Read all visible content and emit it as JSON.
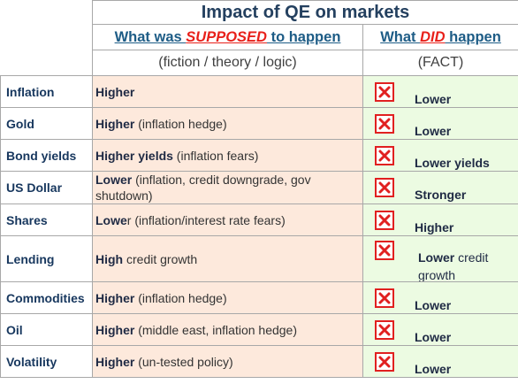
{
  "title": "Impact of QE on markets",
  "header": {
    "supposed": {
      "pre": "What was ",
      "em": "SUPPOSED",
      "post": " to happen"
    },
    "did": {
      "pre": "What ",
      "em": "DID",
      "post": " happen"
    },
    "supposed_sub": "(fiction / theory / logic)",
    "did_sub": "(FACT)"
  },
  "rows": [
    {
      "label": "Inflation",
      "supposed_bold": "Higher",
      "supposed_rest": "",
      "fact_bold": "Lower",
      "fact_rest": "",
      "fact_icon": "red-x-icon"
    },
    {
      "label": "Gold",
      "supposed_bold": "Higher",
      "supposed_rest": " (inflation hedge)",
      "fact_bold": "Lower",
      "fact_rest": "",
      "fact_icon": "red-x-icon"
    },
    {
      "label": "Bond yields",
      "supposed_bold": "Higher yields",
      "supposed_rest": " (inflation fears)",
      "fact_bold": "Lower yields",
      "fact_rest": "",
      "fact_icon": "red-x-icon"
    },
    {
      "label": "US Dollar",
      "supposed_bold": "Lower",
      "supposed_rest": " (inflation, credit downgrade, gov shutdown)",
      "fact_bold": "Stronger",
      "fact_rest": "",
      "fact_icon": "red-x-icon"
    },
    {
      "label": "Shares",
      "supposed_bold": "Lowe",
      "supposed_rest": "r (inflation/interest rate  fears)",
      "fact_bold": "Higher",
      "fact_rest": "",
      "fact_icon": "red-x-icon"
    },
    {
      "label": "Lending",
      "supposed_bold": "High",
      "supposed_rest": " credit growth",
      "fact_bold": "Lower",
      "fact_rest": " credit growth",
      "fact_icon": "red-x-icon"
    },
    {
      "label": "Commodities",
      "supposed_bold": "Higher",
      "supposed_rest": " (inflation hedge)",
      "fact_bold": "Lower",
      "fact_rest": "",
      "fact_icon": "red-x-icon"
    },
    {
      "label": "Oil",
      "supposed_bold": "Higher",
      "supposed_rest": " (middle east, inflation hedge)",
      "fact_bold": "Lower",
      "fact_rest": "",
      "fact_icon": "red-x-icon"
    },
    {
      "label": "Volatility",
      "supposed_bold": "Higher",
      "supposed_rest": " (un-tested policy)",
      "fact_bold": "Lower",
      "fact_rest": "",
      "fact_icon": "red-x-icon"
    }
  ]
}
